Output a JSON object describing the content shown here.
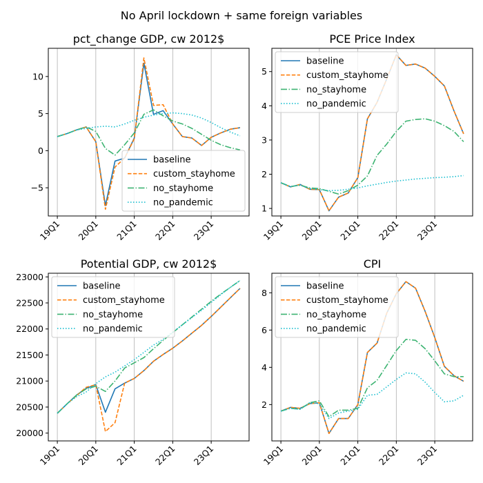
{
  "figure": {
    "suptitle": "No April lockdown + same foreign variables"
  },
  "chart_data": [
    {
      "type": "line",
      "title": "pct_change GDP, cw 2012$",
      "x": [
        "19Q1",
        "19Q2",
        "19Q3",
        "19Q4",
        "20Q1",
        "20Q2",
        "20Q3",
        "20Q4",
        "21Q1",
        "21Q2",
        "21Q3",
        "21Q4",
        "22Q1",
        "22Q2",
        "22Q3",
        "22Q4",
        "23Q1",
        "23Q2",
        "23Q3",
        "23Q4"
      ],
      "xticks": [
        "19Q1",
        "20Q1",
        "21Q1",
        "22Q1",
        "23Q1"
      ],
      "ylim": [
        -8.8,
        13.8
      ],
      "yticks": [
        -5,
        0,
        5,
        10
      ],
      "ytick_labels": [
        "−5",
        "0",
        "5",
        "10"
      ],
      "legend": "lower-right",
      "grid": "vertical",
      "series": [
        {
          "name": "baseline",
          "color": "#1f77b4",
          "dash": "solid",
          "values": [
            1.9,
            2.3,
            2.8,
            3.2,
            1.2,
            -7.4,
            -1.4,
            -1.0,
            1.7,
            11.8,
            4.9,
            5.4,
            3.6,
            1.9,
            1.7,
            0.7,
            1.8,
            2.4,
            2.9,
            3.1
          ]
        },
        {
          "name": "custom_stayhome",
          "color": "#ff7f0e",
          "dash": "dashed",
          "values": [
            1.9,
            2.3,
            2.8,
            3.2,
            1.2,
            -7.9,
            -2.2,
            -1.0,
            1.6,
            12.5,
            6.1,
            6.2,
            3.6,
            1.9,
            1.7,
            0.7,
            1.8,
            2.4,
            2.9,
            3.1
          ]
        },
        {
          "name": "no_stayhome",
          "color": "#3cb371",
          "dash": "dashdot",
          "values": [
            1.9,
            2.3,
            2.8,
            3.2,
            2.6,
            0.3,
            -0.6,
            0.8,
            2.4,
            4.9,
            5.5,
            4.7,
            4.0,
            3.6,
            3.0,
            2.2,
            1.4,
            0.8,
            0.4,
            0.1
          ]
        },
        {
          "name": "no_pandemic",
          "color": "#17becf",
          "dash": "dotted",
          "values": [
            1.9,
            2.3,
            2.8,
            3.0,
            3.2,
            3.3,
            3.2,
            3.6,
            4.1,
            4.5,
            4.8,
            5.0,
            5.1,
            5.0,
            4.8,
            4.4,
            3.8,
            3.1,
            2.5,
            2.0
          ]
        }
      ]
    },
    {
      "type": "line",
      "title": "PCE Price Index",
      "x": [
        "19Q1",
        "19Q2",
        "19Q3",
        "19Q4",
        "20Q1",
        "20Q2",
        "20Q3",
        "20Q4",
        "21Q1",
        "21Q2",
        "21Q3",
        "21Q4",
        "22Q1",
        "22Q2",
        "22Q3",
        "22Q4",
        "23Q1",
        "23Q2",
        "23Q3",
        "23Q4"
      ],
      "xticks": [
        "19Q1",
        "20Q1",
        "21Q1",
        "22Q1",
        "23Q1"
      ],
      "ylim": [
        0.78,
        5.68
      ],
      "yticks": [
        1,
        2,
        3,
        4,
        5
      ],
      "ytick_labels": [
        "1",
        "2",
        "3",
        "4",
        "5"
      ],
      "legend": "upper-left",
      "grid": "vertical",
      "series": [
        {
          "name": "baseline",
          "color": "#1f77b4",
          "dash": "solid",
          "values": [
            1.75,
            1.63,
            1.7,
            1.56,
            1.55,
            0.93,
            1.33,
            1.45,
            1.9,
            3.62,
            4.1,
            4.78,
            5.49,
            5.18,
            5.22,
            5.1,
            4.86,
            4.58,
            3.85,
            3.18
          ]
        },
        {
          "name": "custom_stayhome",
          "color": "#ff7f0e",
          "dash": "dashed",
          "values": [
            1.75,
            1.63,
            1.7,
            1.56,
            1.55,
            0.93,
            1.33,
            1.45,
            1.9,
            3.62,
            4.1,
            4.78,
            5.49,
            5.18,
            5.22,
            5.1,
            4.86,
            4.58,
            3.85,
            3.18
          ]
        },
        {
          "name": "no_stayhome",
          "color": "#3cb371",
          "dash": "dashdot",
          "values": [
            1.75,
            1.64,
            1.68,
            1.6,
            1.58,
            1.5,
            1.42,
            1.52,
            1.68,
            1.95,
            2.55,
            2.88,
            3.25,
            3.55,
            3.6,
            3.62,
            3.55,
            3.42,
            3.25,
            2.95
          ]
        },
        {
          "name": "no_pandemic",
          "color": "#17becf",
          "dash": "dotted",
          "values": [
            1.75,
            1.64,
            1.68,
            1.58,
            1.55,
            1.52,
            1.53,
            1.56,
            1.6,
            1.66,
            1.71,
            1.76,
            1.8,
            1.83,
            1.86,
            1.88,
            1.9,
            1.91,
            1.93,
            1.96
          ]
        }
      ]
    },
    {
      "type": "line",
      "title": "Potential GDP, cw 2012$",
      "x": [
        "19Q1",
        "19Q2",
        "19Q3",
        "19Q4",
        "20Q1",
        "20Q2",
        "20Q3",
        "20Q4",
        "21Q1",
        "21Q2",
        "21Q3",
        "21Q4",
        "22Q1",
        "22Q2",
        "22Q3",
        "22Q4",
        "23Q1",
        "23Q2",
        "23Q3",
        "23Q4"
      ],
      "xticks": [
        "19Q1",
        "20Q1",
        "21Q1",
        "22Q1",
        "23Q1"
      ],
      "ylim": [
        19850,
        23070
      ],
      "yticks": [
        20000,
        20500,
        21000,
        21500,
        22000,
        22500,
        23000
      ],
      "ytick_labels": [
        "20000",
        "20500",
        "21000",
        "21500",
        "22000",
        "22500",
        "23000"
      ],
      "legend": "upper-left",
      "grid": "vertical",
      "series": [
        {
          "name": "baseline",
          "color": "#1f77b4",
          "dash": "solid",
          "values": [
            20380,
            20560,
            20730,
            20860,
            20930,
            20400,
            20850,
            20960,
            21050,
            21200,
            21380,
            21510,
            21630,
            21770,
            21920,
            22070,
            22240,
            22420,
            22600,
            22780
          ]
        },
        {
          "name": "custom_stayhome",
          "color": "#ff7f0e",
          "dash": "dashed",
          "values": [
            20380,
            20560,
            20720,
            20880,
            20930,
            20030,
            20200,
            20960,
            21050,
            21200,
            21380,
            21510,
            21630,
            21770,
            21920,
            22070,
            22240,
            22420,
            22600,
            22780
          ]
        },
        {
          "name": "no_stayhome",
          "color": "#3cb371",
          "dash": "dashdot",
          "values": [
            20380,
            20560,
            20730,
            20850,
            20900,
            20800,
            21000,
            21250,
            21350,
            21450,
            21620,
            21780,
            21930,
            22080,
            22230,
            22380,
            22530,
            22670,
            22800,
            22930
          ]
        },
        {
          "name": "no_pandemic",
          "color": "#17becf",
          "dash": "dotted",
          "values": [
            20380,
            20560,
            20700,
            20790,
            20950,
            21080,
            21170,
            21290,
            21410,
            21550,
            21690,
            21800,
            21940,
            22080,
            22220,
            22360,
            22510,
            22660,
            22800,
            22930
          ]
        }
      ]
    },
    {
      "type": "line",
      "title": "CPI",
      "x": [
        "19Q1",
        "19Q2",
        "19Q3",
        "19Q4",
        "20Q1",
        "20Q2",
        "20Q3",
        "20Q4",
        "21Q1",
        "21Q2",
        "21Q3",
        "21Q4",
        "22Q1",
        "22Q2",
        "22Q3",
        "22Q4",
        "23Q1",
        "23Q2",
        "23Q3",
        "23Q4"
      ],
      "xticks": [
        "19Q1",
        "20Q1",
        "21Q1",
        "22Q1",
        "23Q1"
      ],
      "ylim": [
        0.05,
        9.05
      ],
      "yticks": [
        2,
        4,
        6,
        8
      ],
      "ytick_labels": [
        "2",
        "4",
        "6",
        "8"
      ],
      "legend": "upper-left",
      "grid": "vertical",
      "series": [
        {
          "name": "baseline",
          "color": "#1f77b4",
          "dash": "solid",
          "values": [
            1.65,
            1.85,
            1.8,
            2.05,
            2.1,
            0.45,
            1.25,
            1.25,
            2.0,
            4.8,
            5.3,
            6.9,
            7.95,
            8.6,
            8.25,
            7.0,
            5.6,
            4.05,
            3.55,
            3.25
          ]
        },
        {
          "name": "custom_stayhome",
          "color": "#ff7f0e",
          "dash": "dashed",
          "values": [
            1.65,
            1.85,
            1.8,
            2.05,
            2.1,
            0.45,
            1.25,
            1.25,
            2.0,
            4.8,
            5.3,
            6.9,
            7.95,
            8.6,
            8.25,
            7.0,
            5.6,
            4.05,
            3.55,
            3.25
          ]
        },
        {
          "name": "no_stayhome",
          "color": "#3cb371",
          "dash": "dashdot",
          "values": [
            1.65,
            1.8,
            1.75,
            2.1,
            2.2,
            1.35,
            1.7,
            1.7,
            1.8,
            2.9,
            3.3,
            4.1,
            4.9,
            5.5,
            5.45,
            5.0,
            4.35,
            3.65,
            3.5,
            3.5
          ]
        },
        {
          "name": "no_pandemic",
          "color": "#17becf",
          "dash": "dotted",
          "values": [
            1.65,
            1.8,
            1.75,
            2.1,
            2.05,
            1.25,
            1.55,
            1.65,
            1.75,
            2.5,
            2.55,
            2.95,
            3.35,
            3.7,
            3.65,
            3.2,
            2.65,
            2.15,
            2.2,
            2.5
          ]
        }
      ]
    }
  ]
}
